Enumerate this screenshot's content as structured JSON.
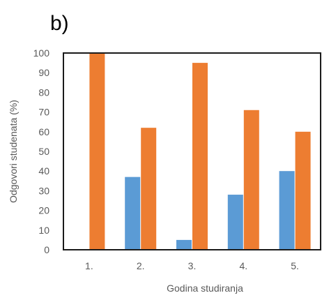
{
  "panel_label": "b)",
  "chart_data": {
    "type": "bar",
    "title": "",
    "xlabel": "Godina studiranja",
    "ylabel": "Odgovori studenata (%)",
    "categories": [
      "1.",
      "2.",
      "3.",
      "4.",
      "5."
    ],
    "series": [
      {
        "color": "#5b9bd5",
        "values": [
          0,
          37,
          5,
          28,
          40
        ]
      },
      {
        "color": "#ed7d31",
        "values": [
          100,
          62,
          95,
          71,
          60
        ]
      }
    ],
    "ylim": [
      0,
      100
    ],
    "yticks": [
      0,
      10,
      20,
      30,
      40,
      50,
      60,
      70,
      80,
      90,
      100
    ],
    "grid": false,
    "legend": "none"
  }
}
